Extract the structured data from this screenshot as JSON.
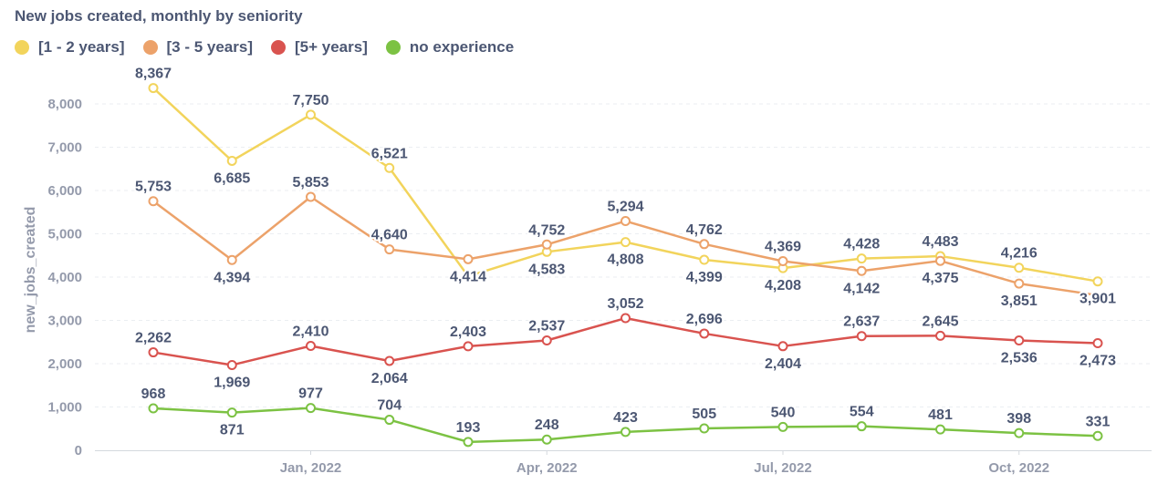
{
  "chart_data": {
    "type": "line",
    "title": "New jobs created, monthly by seniority",
    "xlabel": "",
    "ylabel": "new_jobs_created",
    "ylim": [
      0,
      8000
    ],
    "yticks": [
      0,
      1000,
      2000,
      3000,
      4000,
      5000,
      6000,
      7000,
      8000
    ],
    "ytick_labels": [
      "0",
      "1,000",
      "2,000",
      "3,000",
      "4,000",
      "5,000",
      "6,000",
      "7,000",
      "8,000"
    ],
    "x": [
      "Nov, 2021",
      "Dec, 2021",
      "Jan, 2022",
      "Feb, 2022",
      "Mar, 2022",
      "Apr, 2022",
      "May, 2022",
      "Jun, 2022",
      "Jul, 2022",
      "Aug, 2022",
      "Sep, 2022",
      "Oct, 2022",
      "Nov, 2022"
    ],
    "xticks": [
      {
        "index": 2,
        "label": "Jan, 2022"
      },
      {
        "index": 5,
        "label": "Apr, 2022"
      },
      {
        "index": 8,
        "label": "Jul, 2022"
      },
      {
        "index": 11,
        "label": "Oct, 2022"
      }
    ],
    "grid": true,
    "legend_position": "top-left",
    "series": [
      {
        "name": "[1 - 2 years]",
        "color": "#f2d45c",
        "values": [
          8367,
          6685,
          7750,
          6521,
          4020,
          4583,
          4808,
          4399,
          4208,
          4428,
          4483,
          4216,
          3901
        ],
        "labels": [
          "8,367",
          "6,685",
          "7,750",
          "6,521",
          null,
          "4,583",
          "4,808",
          "4,399",
          "4,208",
          "4,428",
          "4,483",
          "4,216",
          "3,901"
        ],
        "label_pos": [
          "above",
          "below",
          "above",
          "above",
          null,
          "below",
          "below",
          "below",
          "below",
          "above",
          "above",
          "above",
          "below"
        ]
      },
      {
        "name": "[3 - 5 years]",
        "color": "#eca26a",
        "values": [
          5753,
          4394,
          5853,
          4640,
          4414,
          4752,
          5294,
          4762,
          4369,
          4142,
          4375,
          3851,
          3580
        ],
        "labels": [
          "5,753",
          "4,394",
          "5,853",
          "4,640",
          "4,414",
          "4,752",
          "5,294",
          "4,762",
          "4,369",
          "4,142",
          "4,375",
          "3,851",
          null
        ],
        "label_pos": [
          "above",
          "below",
          "above",
          "above",
          "below",
          "above",
          "above",
          "above",
          "above",
          "below",
          "below",
          "below",
          null
        ]
      },
      {
        "name": "[5+ years]",
        "color": "#d9534f",
        "values": [
          2262,
          1969,
          2410,
          2064,
          2403,
          2537,
          3052,
          2696,
          2404,
          2637,
          2645,
          2536,
          2473
        ],
        "labels": [
          "2,262",
          "1,969",
          "2,410",
          "2,064",
          "2,403",
          "2,537",
          "3,052",
          "2,696",
          "2,404",
          "2,637",
          "2,645",
          "2,536",
          "2,473"
        ],
        "label_pos": [
          "above",
          "below",
          "above",
          "below",
          "above",
          "above",
          "above",
          "above",
          "below",
          "above",
          "above",
          "below",
          "below"
        ]
      },
      {
        "name": "no experience",
        "color": "#7cc243",
        "values": [
          968,
          871,
          977,
          704,
          193,
          248,
          423,
          505,
          540,
          554,
          481,
          398,
          331
        ],
        "labels": [
          "968",
          "871",
          "977",
          "704",
          "193",
          "248",
          "423",
          "505",
          "540",
          "554",
          "481",
          "398",
          "331"
        ],
        "label_pos": [
          "above",
          "below",
          "above",
          "above",
          "above",
          "above",
          "above",
          "above",
          "above",
          "above",
          "above",
          "above",
          "above"
        ]
      }
    ]
  }
}
